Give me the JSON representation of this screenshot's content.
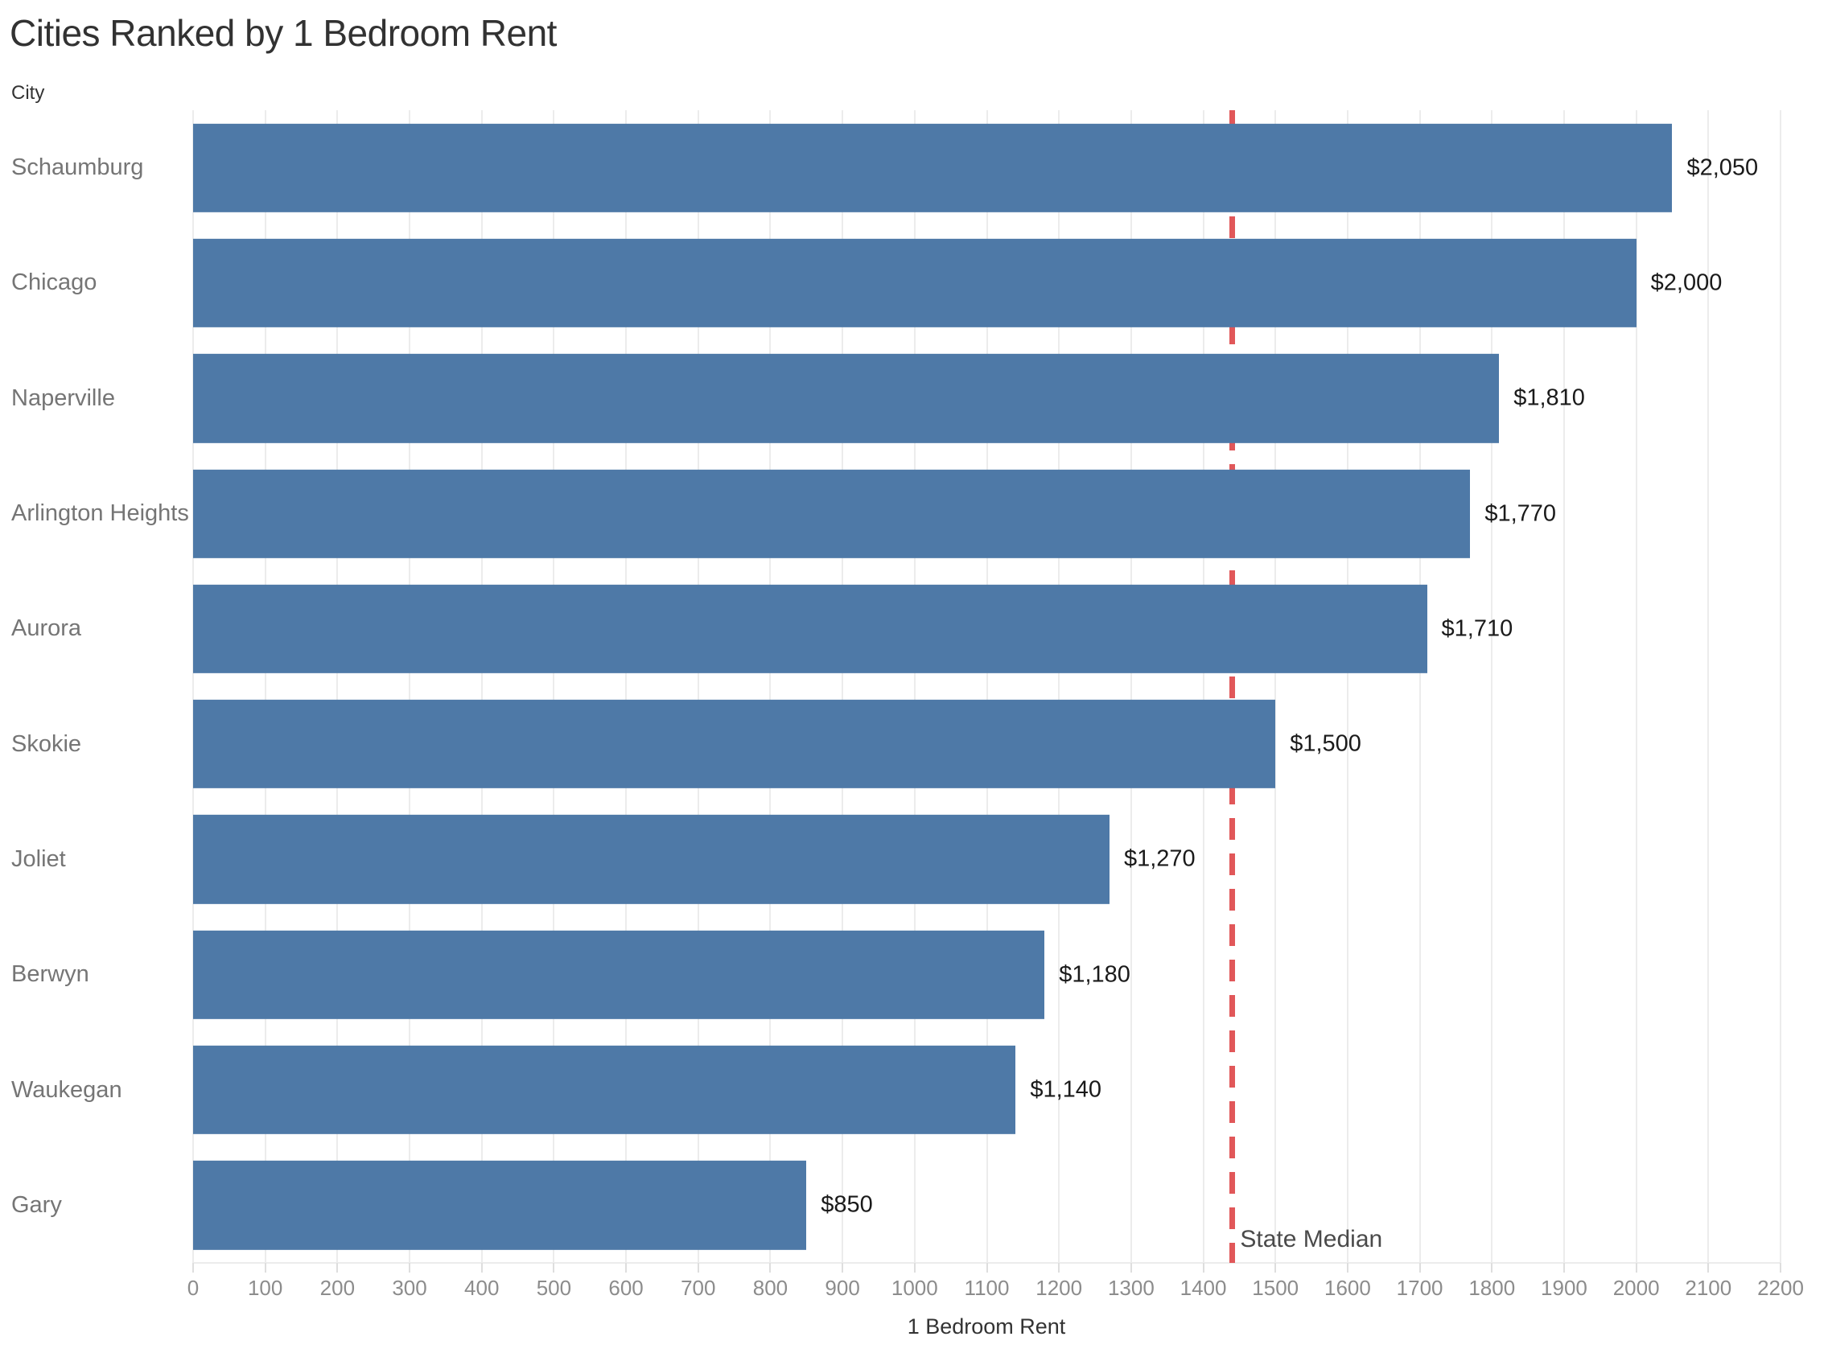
{
  "chart_data": {
    "type": "bar",
    "orientation": "horizontal",
    "title": "Cities Ranked by 1 Bedroom Rent",
    "xlabel": "1 Bedroom Rent",
    "ylabel": "City",
    "categories": [
      "Schaumburg",
      "Chicago",
      "Naperville",
      "Arlington Heights",
      "Aurora",
      "Skokie",
      "Joliet",
      "Berwyn",
      "Waukegan",
      "Gary"
    ],
    "values": [
      2050,
      2000,
      1810,
      1770,
      1710,
      1500,
      1270,
      1180,
      1140,
      850
    ],
    "value_labels": [
      "$2,050",
      "$2,000",
      "$1,810",
      "$1,770",
      "$1,710",
      "$1,500",
      "$1,270",
      "$1,180",
      "$1,140",
      "$850"
    ],
    "xlim": [
      0,
      2200
    ],
    "x_tick_step": 100,
    "x_tick_labels": [
      "0",
      "100",
      "200",
      "300",
      "400",
      "500",
      "600",
      "700",
      "800",
      "900",
      "1000",
      "1100",
      "1200",
      "1300",
      "1400",
      "1500",
      "1600",
      "1700",
      "1800",
      "1900",
      "2000",
      "2100",
      "2200"
    ],
    "grid": true,
    "legend": "none",
    "reference_line": {
      "label": "State Median",
      "value": 1440,
      "style": "dashed"
    }
  },
  "colors": {
    "bar": "#4e79a7",
    "reference_line": "#e15759",
    "gridline": "#ececec",
    "value_label": "#1a1a1a",
    "city_label": "#757575",
    "tick_label": "#8c8c8c",
    "title": "#323232"
  }
}
